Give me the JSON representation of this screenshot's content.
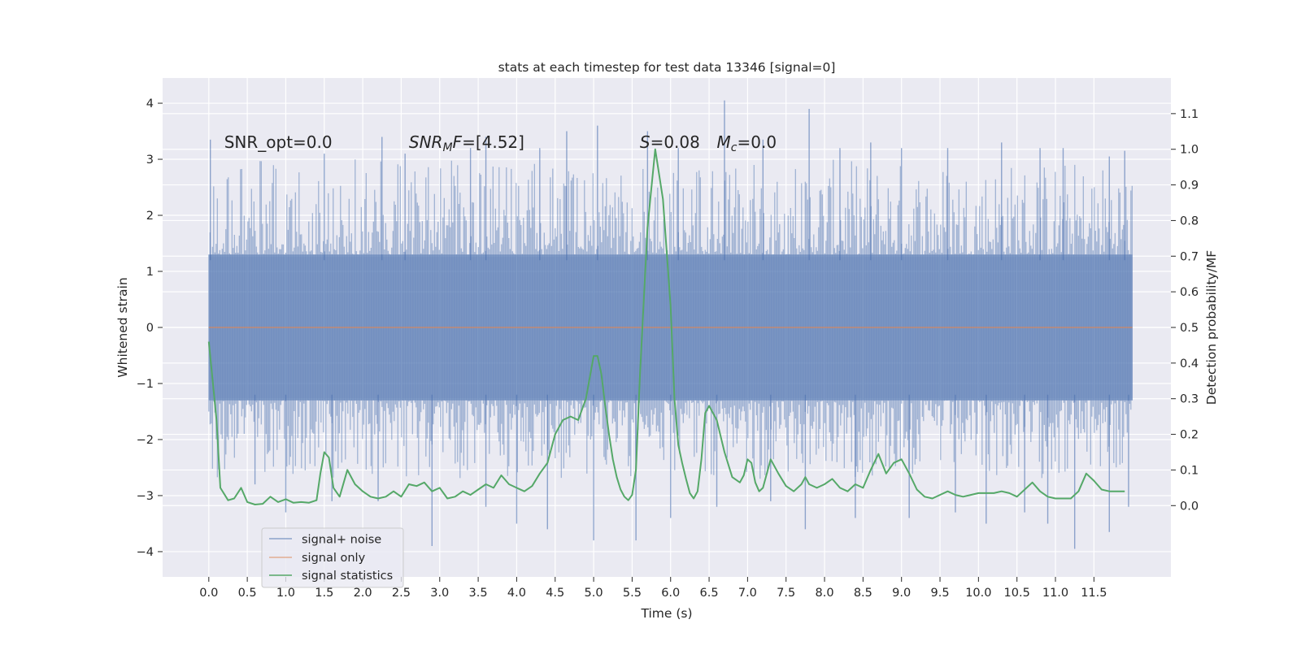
{
  "chart_data": {
    "type": "line",
    "title": "stats at each timestep for test data 13346 [signal=0]",
    "xlabel": "Time (s)",
    "ylabel": "Whitened strain",
    "ylabel_right": "Detection probability/MF",
    "xlim": [
      -0.6,
      12.5
    ],
    "ylim": [
      -4.45,
      4.45
    ],
    "ylim_right": [
      -0.2,
      1.2
    ],
    "xticks": [
      0.0,
      0.5,
      1.0,
      1.5,
      2.0,
      2.5,
      3.0,
      3.5,
      4.0,
      4.5,
      5.0,
      5.5,
      6.0,
      6.5,
      7.0,
      7.5,
      8.0,
      8.5,
      9.0,
      9.5,
      10.0,
      10.5,
      11.0,
      11.5
    ],
    "xticklabels": [
      "0.0",
      "0.5",
      "1.0",
      "1.5",
      "2.0",
      "2.5",
      "3.0",
      "3.5",
      "4.0",
      "4.5",
      "5.0",
      "5.5",
      "6.0",
      "6.5",
      "7.0",
      "7.5",
      "8.0",
      "8.5",
      "9.0",
      "9.5",
      "10.0",
      "10.5",
      "11.0",
      "11.5"
    ],
    "yticks": [
      -4,
      -3,
      -2,
      -1,
      0,
      1,
      2,
      3,
      4
    ],
    "yticklabels": [
      "−4",
      "−3",
      "−2",
      "−1",
      "0",
      "1",
      "2",
      "3",
      "4"
    ],
    "yticks_right": [
      0.0,
      0.1,
      0.2,
      0.3,
      0.4,
      0.5,
      0.6,
      0.7,
      0.8,
      0.9,
      1.0,
      1.1
    ],
    "yticklabels_right": [
      "0.0",
      "0.1",
      "0.2",
      "0.3",
      "0.4",
      "0.5",
      "0.6",
      "0.7",
      "0.8",
      "0.9",
      "1.0",
      "1.1"
    ],
    "grid": true,
    "legend_position": "lower-left",
    "annotations": [
      {
        "label": "SNR_opt=0.0",
        "x": 0.2,
        "y": 3.2
      },
      {
        "label": "SNR_MF=[4.52]",
        "x": 2.6,
        "y": 3.2
      },
      {
        "label": "S=0.08",
        "x": 5.6,
        "y": 3.2
      },
      {
        "label": "M_c=0.0",
        "x": 6.6,
        "y": 3.2
      }
    ],
    "series": [
      {
        "name": "signal+ noise",
        "color": "#4c72b0",
        "axis": "left",
        "style": "dense-noise",
        "x_range": [
          0.0,
          12.0
        ],
        "body_range": [
          -1.3,
          1.3
        ],
        "peaks": [
          {
            "x": 0.02,
            "y": 3.35
          },
          {
            "x": 1.5,
            "y": 3.1
          },
          {
            "x": 2.25,
            "y": 3.4
          },
          {
            "x": 2.55,
            "y": 3.1
          },
          {
            "x": 3.4,
            "y": 3.2
          },
          {
            "x": 3.6,
            "y": 3.4
          },
          {
            "x": 4.3,
            "y": 3.2
          },
          {
            "x": 4.65,
            "y": 3.5
          },
          {
            "x": 5.05,
            "y": 3.6
          },
          {
            "x": 5.7,
            "y": 3.5
          },
          {
            "x": 6.1,
            "y": 3.2
          },
          {
            "x": 6.7,
            "y": 4.05
          },
          {
            "x": 7.2,
            "y": 3.35
          },
          {
            "x": 7.8,
            "y": 3.9
          },
          {
            "x": 8.2,
            "y": 3.2
          },
          {
            "x": 8.6,
            "y": 3.3
          },
          {
            "x": 9.0,
            "y": 3.2
          },
          {
            "x": 9.6,
            "y": 3.2
          },
          {
            "x": 10.3,
            "y": 3.3
          },
          {
            "x": 10.8,
            "y": 3.2
          },
          {
            "x": 11.1,
            "y": 3.2
          },
          {
            "x": 11.7,
            "y": 3.05
          },
          {
            "x": 11.9,
            "y": 3.15
          }
        ],
        "troughs": [
          {
            "x": 0.6,
            "y": -2.8
          },
          {
            "x": 1.0,
            "y": -3.3
          },
          {
            "x": 1.6,
            "y": -3.1
          },
          {
            "x": 2.2,
            "y": -3.1
          },
          {
            "x": 2.9,
            "y": -3.9
          },
          {
            "x": 3.6,
            "y": -3.2
          },
          {
            "x": 4.0,
            "y": -3.5
          },
          {
            "x": 4.4,
            "y": -3.6
          },
          {
            "x": 5.0,
            "y": -3.8
          },
          {
            "x": 5.55,
            "y": -3.8
          },
          {
            "x": 6.0,
            "y": -3.4
          },
          {
            "x": 6.6,
            "y": -3.2
          },
          {
            "x": 7.3,
            "y": -3.1
          },
          {
            "x": 7.75,
            "y": -3.6
          },
          {
            "x": 8.4,
            "y": -3.4
          },
          {
            "x": 9.1,
            "y": -3.4
          },
          {
            "x": 9.7,
            "y": -3.3
          },
          {
            "x": 10.1,
            "y": -3.5
          },
          {
            "x": 10.6,
            "y": -3.3
          },
          {
            "x": 10.9,
            "y": -3.5
          },
          {
            "x": 11.25,
            "y": -3.95
          },
          {
            "x": 11.7,
            "y": -3.65
          },
          {
            "x": 11.95,
            "y": -3.2
          }
        ]
      },
      {
        "name": "signal only",
        "color": "#dd8452",
        "axis": "left",
        "x": [
          0.0,
          12.0
        ],
        "y": [
          0.0,
          0.0
        ]
      },
      {
        "name": "signal statistics",
        "color": "#55a868",
        "axis": "right",
        "x": [
          0.0,
          0.1,
          0.15,
          0.25,
          0.33,
          0.42,
          0.5,
          0.6,
          0.7,
          0.8,
          0.9,
          1.0,
          1.1,
          1.2,
          1.3,
          1.4,
          1.45,
          1.5,
          1.56,
          1.62,
          1.7,
          1.8,
          1.9,
          2.0,
          2.1,
          2.2,
          2.3,
          2.4,
          2.5,
          2.6,
          2.7,
          2.8,
          2.9,
          3.0,
          3.1,
          3.2,
          3.3,
          3.4,
          3.5,
          3.6,
          3.7,
          3.8,
          3.9,
          4.0,
          4.1,
          4.2,
          4.3,
          4.4,
          4.5,
          4.6,
          4.7,
          4.8,
          4.9,
          5.0,
          5.05,
          5.1,
          5.15,
          5.2,
          5.25,
          5.3,
          5.35,
          5.4,
          5.45,
          5.5,
          5.55,
          5.6,
          5.7,
          5.8,
          5.9,
          6.0,
          6.05,
          6.1,
          6.15,
          6.2,
          6.25,
          6.3,
          6.35,
          6.4,
          6.45,
          6.5,
          6.6,
          6.7,
          6.8,
          6.9,
          6.95,
          7.0,
          7.05,
          7.1,
          7.15,
          7.2,
          7.3,
          7.4,
          7.5,
          7.6,
          7.7,
          7.75,
          7.8,
          7.9,
          8.0,
          8.1,
          8.2,
          8.3,
          8.4,
          8.5,
          8.6,
          8.7,
          8.8,
          8.9,
          9.0,
          9.1,
          9.2,
          9.3,
          9.4,
          9.5,
          9.6,
          9.7,
          9.8,
          9.9,
          10.0,
          10.1,
          10.2,
          10.3,
          10.4,
          10.5,
          10.6,
          10.7,
          10.8,
          10.9,
          11.0,
          11.1,
          11.2,
          11.3,
          11.4,
          11.5,
          11.6,
          11.7,
          11.8,
          11.9
        ],
        "y": [
          0.46,
          0.24,
          0.05,
          0.015,
          0.02,
          0.05,
          0.01,
          0.003,
          0.005,
          0.025,
          0.01,
          0.018,
          0.008,
          0.01,
          0.008,
          0.015,
          0.09,
          0.15,
          0.135,
          0.05,
          0.025,
          0.1,
          0.06,
          0.04,
          0.025,
          0.02,
          0.025,
          0.04,
          0.025,
          0.06,
          0.055,
          0.065,
          0.04,
          0.05,
          0.02,
          0.025,
          0.04,
          0.03,
          0.045,
          0.06,
          0.05,
          0.085,
          0.06,
          0.05,
          0.04,
          0.055,
          0.09,
          0.12,
          0.2,
          0.24,
          0.25,
          0.24,
          0.3,
          0.42,
          0.42,
          0.37,
          0.28,
          0.2,
          0.13,
          0.08,
          0.045,
          0.025,
          0.015,
          0.03,
          0.1,
          0.36,
          0.78,
          1.0,
          0.86,
          0.56,
          0.3,
          0.17,
          0.12,
          0.075,
          0.035,
          0.02,
          0.04,
          0.13,
          0.26,
          0.28,
          0.24,
          0.15,
          0.08,
          0.065,
          0.085,
          0.13,
          0.12,
          0.065,
          0.04,
          0.05,
          0.13,
          0.09,
          0.055,
          0.04,
          0.06,
          0.08,
          0.06,
          0.05,
          0.06,
          0.075,
          0.05,
          0.04,
          0.06,
          0.05,
          0.1,
          0.145,
          0.09,
          0.12,
          0.13,
          0.09,
          0.045,
          0.025,
          0.02,
          0.03,
          0.04,
          0.03,
          0.025,
          0.03,
          0.035,
          0.035,
          0.035,
          0.04,
          0.035,
          0.025,
          0.045,
          0.065,
          0.04,
          0.025,
          0.02,
          0.02,
          0.02,
          0.04,
          0.09,
          0.07,
          0.045,
          0.04,
          0.04,
          0.04
        ]
      }
    ]
  }
}
